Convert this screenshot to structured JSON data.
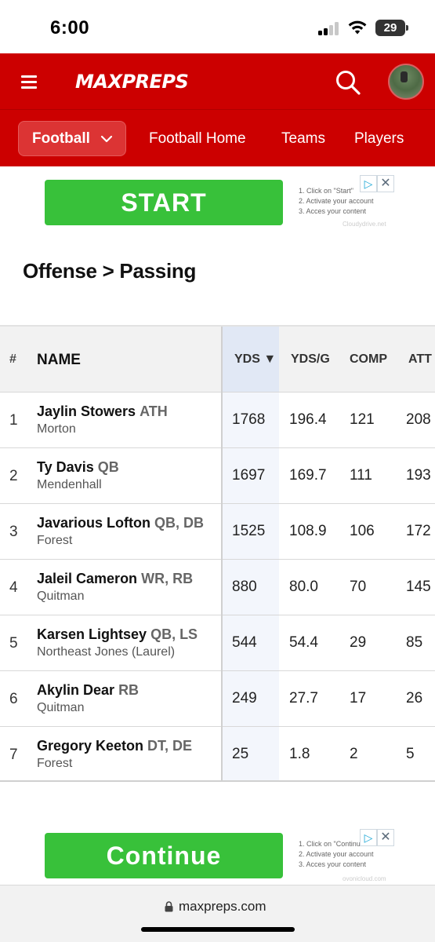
{
  "status_bar": {
    "time": "6:00",
    "battery": "29"
  },
  "header": {
    "logo_text": "MAXPREPS",
    "sport_select": "Football",
    "nav_links": [
      "Football Home",
      "Teams",
      "Players"
    ],
    "accent_color": "#cc0000"
  },
  "ad_top": {
    "button": "START",
    "steps": [
      "1. Click on \"Start\"",
      "2. Activate your account",
      "3. Acces your content"
    ],
    "domain": "Cloudydrive.net"
  },
  "section_title": "Offense > Passing",
  "table": {
    "headers": {
      "rank": "#",
      "name": "NAME",
      "yds": "YDS ▼",
      "yds_g": "YDS/G",
      "comp": "COMP",
      "att": "ATT"
    },
    "rows": [
      {
        "rank": "1",
        "name": "Jaylin Stowers",
        "pos": "ATH",
        "school": "Morton",
        "yds": "1768",
        "yds_g": "196.4",
        "comp": "121",
        "att": "208"
      },
      {
        "rank": "2",
        "name": "Ty Davis",
        "pos": "QB",
        "school": "Mendenhall",
        "yds": "1697",
        "yds_g": "169.7",
        "comp": "111",
        "att": "193"
      },
      {
        "rank": "3",
        "name": "Javarious Lofton",
        "pos": "QB, DB",
        "school": "Forest",
        "yds": "1525",
        "yds_g": "108.9",
        "comp": "106",
        "att": "172"
      },
      {
        "rank": "4",
        "name": "Jaleil Cameron",
        "pos": "WR, RB",
        "school": "Quitman",
        "yds": "880",
        "yds_g": "80.0",
        "comp": "70",
        "att": "145"
      },
      {
        "rank": "5",
        "name": "Karsen Lightsey",
        "pos": "QB, LS",
        "school": "Northeast Jones (Laurel)",
        "yds": "544",
        "yds_g": "54.4",
        "comp": "29",
        "att": "85"
      },
      {
        "rank": "6",
        "name": "Akylin Dear",
        "pos": "RB",
        "school": "Quitman",
        "yds": "249",
        "yds_g": "27.7",
        "comp": "17",
        "att": "26"
      },
      {
        "rank": "7",
        "name": "Gregory Keeton",
        "pos": "DT, DE",
        "school": "Forest",
        "yds": "25",
        "yds_g": "1.8",
        "comp": "2",
        "att": "5"
      }
    ]
  },
  "ad_bottom": {
    "button": "Continue",
    "steps": [
      "1. Click on \"Continue\"",
      "2. Activate your account",
      "3. Acces your content"
    ],
    "domain": "ovonicloud.com"
  },
  "url_bar": {
    "url": "maxpreps.com"
  }
}
